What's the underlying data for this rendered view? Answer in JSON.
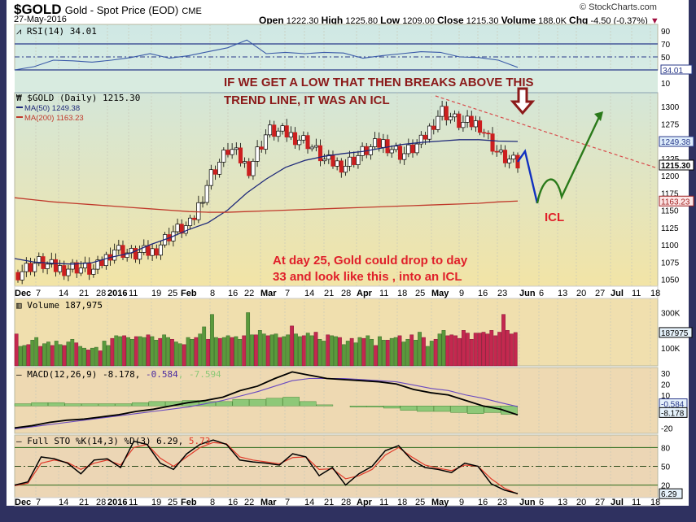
{
  "header": {
    "symbol": "$GOLD",
    "name": "Gold - Spot Price (EOD)",
    "exchange": "CME",
    "date": "27-May-2016",
    "copyright": "© StockCharts.com",
    "open_label": "Open",
    "open": "1222.30",
    "high_label": "High",
    "high": "1225.80",
    "low_label": "Low",
    "low": "1209.00",
    "close_label": "Close",
    "close": "1215.30",
    "volume_label": "Volume",
    "volume": "188.0K",
    "chg_label": "Chg",
    "chg": "-4.50 (-0.37%)"
  },
  "colors": {
    "frame": "#2f3160",
    "up_candle": "#ffffff",
    "down_candle": "#cc1f1f",
    "ma50": "#1f2a7a",
    "ma200": "#c0392b",
    "vol_up": "#5a9a3c",
    "vol_down": "#c4284f",
    "annotation": "#8b1a1a",
    "annotation_bright": "#e0202a",
    "arrow_up": "#2a7a1a",
    "projection_down": "#1030c0"
  },
  "annotations": {
    "line1": "IF WE GET A LOW THAT THEN BREAKS ABOVE THIS",
    "line2": "TREND LINE, IT WAS AN ICL",
    "note1": "At day 25, Gold could drop to day",
    "note2": "33 and look like this , into an ICL",
    "icl": "ICL"
  },
  "chart_data": [
    {
      "type": "line",
      "title": "RSI(14) 34.01",
      "legend": [
        "RSI(14) 34.01"
      ],
      "ylim": [
        0,
        100
      ],
      "yticks": [
        10,
        34.01,
        50,
        70,
        90
      ],
      "reference_lines": [
        30,
        50,
        70
      ],
      "last_value": 34.01,
      "x": [
        "Dec 1",
        "Dec 7",
        "Dec 14",
        "Dec 21",
        "Dec 28",
        "Jan 4",
        "Jan 11",
        "Jan 19",
        "Jan 25",
        "Feb 1",
        "Feb 8",
        "Feb 16",
        "Feb 22",
        "Mar 1",
        "Mar 7",
        "Mar 14",
        "Mar 21",
        "Mar 28",
        "Apr 4",
        "Apr 11",
        "Apr 18",
        "Apr 25",
        "May 2",
        "May 9",
        "May 16",
        "May 23",
        "May 27"
      ],
      "values": [
        30,
        35,
        45,
        44,
        42,
        45,
        49,
        55,
        48,
        52,
        58,
        64,
        76,
        55,
        57,
        55,
        57,
        56,
        48,
        52,
        55,
        58,
        57,
        50,
        49,
        45,
        34
      ]
    },
    {
      "type": "candlestick",
      "title": "$GOLD (Daily) 1215.30",
      "legend": [
        "$GOLD (Daily) 1215.30",
        "MA(50) 1249.38",
        "MA(200) 1163.23"
      ],
      "ylim": [
        1040,
        1320
      ],
      "yticks": [
        1050,
        1075,
        1100,
        1125,
        1150,
        1175,
        1200,
        1225,
        1250,
        1275,
        1300
      ],
      "xticks": [
        "Dec",
        "7",
        "14",
        "21",
        "28",
        "2016",
        "11",
        "19",
        "25",
        "Feb",
        "8",
        "16",
        "22",
        "Mar",
        "7",
        "14",
        "21",
        "28",
        "Apr",
        "11",
        "18",
        "25",
        "May",
        "9",
        "16",
        "23",
        "Jun",
        "6",
        "13",
        "20",
        "27",
        "Jul",
        "11",
        "18"
      ],
      "x": [
        "Dec 1",
        "Dec 7",
        "Dec 14",
        "Dec 21",
        "Dec 28",
        "Jan 4",
        "Jan 11",
        "Jan 19",
        "Jan 25",
        "Feb 1",
        "Feb 8",
        "Feb 16",
        "Feb 22",
        "Mar 1",
        "Mar 7",
        "Mar 14",
        "Mar 21",
        "Mar 28",
        "Apr 4",
        "Apr 11",
        "Apr 18",
        "Apr 25",
        "May 2",
        "May 9",
        "May 16",
        "May 23",
        "May 27"
      ],
      "close": [
        1060,
        1075,
        1065,
        1068,
        1062,
        1095,
        1085,
        1090,
        1118,
        1128,
        1200,
        1240,
        1210,
        1265,
        1260,
        1250,
        1220,
        1215,
        1235,
        1248,
        1230,
        1248,
        1295,
        1275,
        1275,
        1230,
        1215.3
      ],
      "ma50": [
        1080,
        1075,
        1073,
        1072,
        1074,
        1082,
        1088,
        1100,
        1110,
        1122,
        1132,
        1150,
        1175,
        1195,
        1212,
        1222,
        1228,
        1232,
        1235,
        1240,
        1245,
        1248,
        1250,
        1252,
        1252,
        1250,
        1249.38
      ],
      "ma200": [
        1168,
        1165,
        1162,
        1160,
        1158,
        1156,
        1154,
        1152,
        1150,
        1148,
        1147,
        1147,
        1148,
        1149,
        1150,
        1151,
        1152,
        1153,
        1154,
        1155,
        1156,
        1157,
        1158,
        1159,
        1160,
        1162,
        1163.23
      ],
      "last_labels": {
        "ma50": "1249.38",
        "close": "1215.30",
        "ma200": "1163.23"
      },
      "projection": {
        "points": [
          [
            1215,
            "May 27"
          ],
          [
            1228,
            "May 31"
          ],
          [
            1155,
            "Jun 6"
          ],
          [
            1172,
            "Jun 9"
          ],
          [
            1160,
            "Jun 13"
          ],
          [
            1285,
            "Jun 27"
          ]
        ],
        "label": "ICL"
      },
      "trend_line": {
        "from": [
          1305,
          "May 2"
        ],
        "to": [
          1205,
          "Jul 18"
        ],
        "style": "dashed"
      }
    },
    {
      "type": "bar",
      "title": "Volume 187,975",
      "legend": [
        "Volume 187,975"
      ],
      "ylim": [
        0,
        380000
      ],
      "yticks": [
        "100K",
        "200K",
        "300K"
      ],
      "last_value": 187975,
      "values": [
        180,
        110,
        115,
        120,
        145,
        160,
        110,
        125,
        135,
        115,
        140,
        120,
        115,
        135,
        150,
        130,
        110,
        100,
        90,
        100,
        105,
        85,
        140,
        115,
        155,
        170,
        165,
        170,
        160,
        150,
        165,
        165,
        160,
        175,
        165,
        145,
        155,
        175,
        160,
        150,
        135,
        125,
        120,
        160,
        150,
        160,
        180,
        220,
        150,
        290,
        160,
        155,
        160,
        170,
        160,
        165,
        150,
        170,
        300,
        175,
        175,
        200,
        180,
        170,
        175,
        180,
        160,
        165,
        175,
        225,
        180,
        165,
        170,
        185,
        170,
        190,
        150,
        140,
        175,
        170,
        165,
        160,
        120,
        140,
        155,
        130,
        160,
        155,
        170,
        150,
        115,
        165,
        145,
        145,
        155,
        160,
        170,
        135,
        150,
        175,
        145,
        190,
        160,
        110,
        140,
        150,
        180,
        200,
        170,
        175,
        170,
        155,
        200,
        185,
        150,
        185,
        185,
        190,
        180,
        200,
        170,
        190,
        290,
        200,
        180,
        188
      ]
    },
    {
      "type": "line",
      "title": "MACD(12,26,9) -8.178, -0.584, -7.594",
      "legend": [
        "MACD(12,26,9) -8.178",
        "-0.584",
        "-7.594"
      ],
      "ylim": [
        -25,
        35
      ],
      "yticks": [
        -20,
        -10,
        0,
        10,
        20,
        30
      ],
      "last_labels": {
        "macd": "-8.178",
        "signal": "-0.584"
      },
      "macd": [
        -20,
        -18,
        -15,
        -13,
        -12,
        -10,
        -8,
        -5,
        -3,
        0,
        3,
        5,
        8,
        14,
        18,
        25,
        31,
        28,
        25,
        24,
        23,
        22,
        20,
        15,
        12,
        10,
        5,
        0,
        -3,
        -8.178
      ],
      "signal": [
        -21,
        -19,
        -17,
        -15,
        -13,
        -11,
        -9,
        -7,
        -5,
        -3,
        -1,
        2,
        5,
        9,
        13,
        18,
        23,
        25,
        25,
        25,
        24,
        23,
        22,
        19,
        16,
        14,
        10,
        7,
        3,
        -0.584
      ],
      "histogram": [
        2,
        3,
        3,
        2,
        2,
        2,
        2,
        3,
        4,
        4,
        5,
        4,
        4,
        6,
        6,
        7,
        8,
        4,
        1,
        0,
        -1,
        -1,
        -2,
        -4,
        -5,
        -5,
        -6,
        -7,
        -6,
        -7.594
      ]
    },
    {
      "type": "line",
      "title": "Full STO %K(14,3) %D(3) 6.29, 5.73",
      "legend": [
        "Full STO %K(14,3) %D(3) 6.29",
        "5.73"
      ],
      "ylim": [
        0,
        100
      ],
      "yticks": [
        20,
        50,
        80
      ],
      "reference_lines": [
        20,
        50,
        80
      ],
      "last_value": 6.29,
      "k": [
        20,
        25,
        65,
        62,
        55,
        38,
        60,
        62,
        48,
        90,
        85,
        55,
        45,
        70,
        85,
        92,
        85,
        60,
        57,
        55,
        52,
        70,
        65,
        35,
        48,
        20,
        38,
        50,
        75,
        83,
        60,
        48,
        45,
        40,
        55,
        50,
        22,
        12,
        6.29
      ],
      "d": [
        19,
        23,
        55,
        60,
        56,
        45,
        55,
        60,
        52,
        80,
        85,
        63,
        50,
        65,
        80,
        88,
        86,
        65,
        60,
        57,
        54,
        64,
        65,
        45,
        46,
        30,
        35,
        45,
        68,
        80,
        65,
        52,
        47,
        43,
        52,
        50,
        30,
        15,
        5.73
      ]
    }
  ]
}
